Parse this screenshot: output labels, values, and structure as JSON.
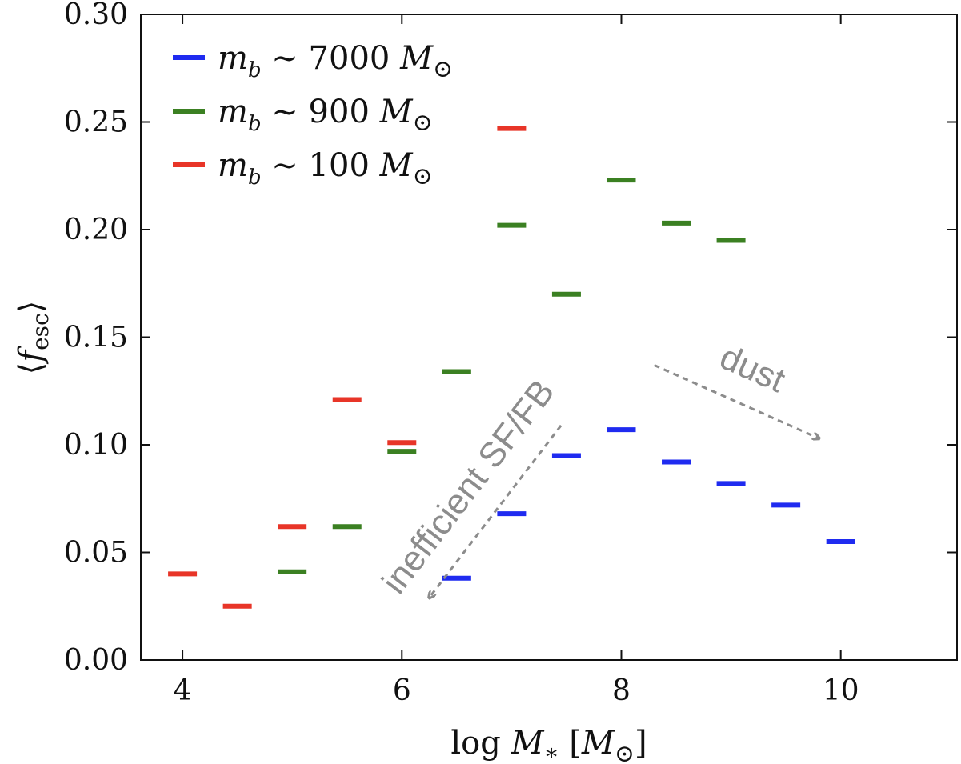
{
  "chart_data": {
    "type": "scatter",
    "marker": "horizontal-dash",
    "xlabel": "log M* [M⊙]",
    "ylabel": "⟨fesc⟩",
    "xlim": [
      3.62,
      11.06
    ],
    "ylim": [
      0.0,
      0.3
    ],
    "xticks": [
      4,
      6,
      8,
      10
    ],
    "yticks": [
      0.0,
      0.05,
      0.1,
      0.15,
      0.2,
      0.25,
      0.3
    ],
    "x_tick_labels": [
      "4",
      "6",
      "8",
      "10"
    ],
    "y_tick_labels": [
      "0.00",
      "0.05",
      "0.10",
      "0.15",
      "0.20",
      "0.25",
      "0.30"
    ],
    "grid": false,
    "legend_position": "top-left",
    "series": [
      {
        "name": "mb ~ 7000 M⊙",
        "color": "#1f2bf0",
        "x": [
          6.5,
          7.0,
          7.5,
          8.0,
          8.5,
          9.0,
          9.5,
          10.0
        ],
        "y": [
          0.038,
          0.068,
          0.095,
          0.107,
          0.092,
          0.082,
          0.072,
          0.055
        ]
      },
      {
        "name": "mb ~ 900 M⊙",
        "color": "#3b8022",
        "x": [
          5.0,
          5.5,
          6.0,
          6.5,
          7.0,
          7.5,
          8.0,
          8.5,
          9.0
        ],
        "y": [
          0.041,
          0.062,
          0.097,
          0.134,
          0.202,
          0.17,
          0.223,
          0.203,
          0.195
        ]
      },
      {
        "name": "mb ~ 100 M⊙",
        "color": "#e83528",
        "x": [
          4.0,
          4.5,
          5.0,
          5.5,
          6.0,
          7.0
        ],
        "y": [
          0.04,
          0.025,
          0.062,
          0.121,
          0.101,
          0.247
        ]
      }
    ],
    "legend": [
      {
        "series": 0,
        "var": "m",
        "sub": "b",
        "text": " ∼ 7000 ",
        "unit_var": "M",
        "unit_sub": "⊙"
      },
      {
        "series": 1,
        "var": "m",
        "sub": "b",
        "text": " ∼ 900 ",
        "unit_var": "M",
        "unit_sub": "⊙"
      },
      {
        "series": 2,
        "var": "m",
        "sub": "b",
        "text": " ∼ 100 ",
        "unit_var": "M",
        "unit_sub": "⊙"
      }
    ],
    "axis_titles": {
      "x": {
        "pre": "log ",
        "var": "M",
        "sub": "∗",
        "post_open": " [",
        "unit_var": "M",
        "unit_sub": "⊙",
        "post_close": "]"
      },
      "y": {
        "open": "⟨",
        "var": "f",
        "sub": "esc",
        "close": "⟩"
      }
    },
    "annotations": [
      {
        "text": "inefficient SF/FB",
        "color": "#8c8c8c",
        "from": [
          7.45,
          0.109
        ],
        "to": [
          6.25,
          0.029
        ]
      },
      {
        "text": "dust",
        "color": "#8c8c8c",
        "from": [
          8.3,
          0.137
        ],
        "to": [
          9.8,
          0.103
        ]
      }
    ]
  }
}
